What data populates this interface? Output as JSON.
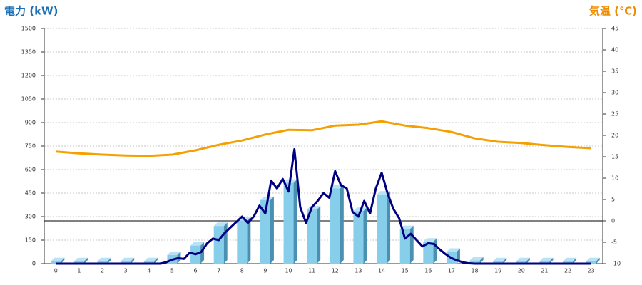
{
  "chart_data": {
    "type": "combo",
    "title": "電力 (kW)",
    "y2_title": "気温 (℃)",
    "categories": [
      "0",
      "1",
      "2",
      "3",
      "4",
      "5",
      "6",
      "7",
      "8",
      "9",
      "10",
      "11",
      "12",
      "13",
      "14",
      "15",
      "16",
      "17",
      "18",
      "19",
      "20",
      "21",
      "22",
      "23"
    ],
    "series": [
      {
        "type": "bar",
        "color": "#87ceeb",
        "values": [
          15,
          15,
          15,
          15,
          15,
          55,
          115,
          240,
          275,
          405,
          515,
          345,
          480,
          335,
          440,
          220,
          140,
          75,
          20,
          15,
          15,
          15,
          15,
          15
        ]
      },
      {
        "type": "line",
        "color": "#f5a000",
        "axis": "y2",
        "values": [
          16.2,
          15.8,
          15.5,
          15.3,
          15.2,
          15.5,
          16.5,
          17.8,
          18.8,
          20.2,
          21.3,
          21.2,
          22.3,
          22.5,
          23.3,
          22.3,
          21.7,
          20.8,
          19.3,
          18.5,
          18.2,
          17.7,
          17.3,
          17.0
        ]
      },
      {
        "type": "line",
        "color": "#000080",
        "x": [
          0,
          1,
          2,
          3,
          4,
          4.5,
          4.75,
          5,
          5.25,
          5.5,
          5.75,
          6,
          6.25,
          6.5,
          6.75,
          7,
          7.25,
          7.5,
          7.75,
          8,
          8.25,
          8.5,
          8.75,
          9,
          9.25,
          9.5,
          9.75,
          10,
          10.25,
          10.5,
          10.75,
          11,
          11.25,
          11.5,
          11.75,
          12,
          12.25,
          12.5,
          12.75,
          13,
          13.25,
          13.5,
          13.75,
          14,
          14.25,
          14.5,
          14.75,
          15,
          15.25,
          15.5,
          15.75,
          16,
          16.25,
          16.5,
          16.75,
          17,
          17.25,
          17.5,
          17.75,
          18,
          19,
          20,
          21,
          22,
          23
        ],
        "values": [
          0,
          0,
          0,
          0,
          0,
          0,
          10,
          25,
          35,
          30,
          70,
          60,
          75,
          130,
          160,
          150,
          195,
          230,
          265,
          300,
          260,
          300,
          370,
          320,
          530,
          480,
          540,
          460,
          730,
          360,
          260,
          360,
          400,
          450,
          420,
          590,
          500,
          480,
          330,
          300,
          400,
          320,
          480,
          580,
          450,
          350,
          290,
          160,
          190,
          150,
          110,
          130,
          125,
          90,
          60,
          35,
          20,
          8,
          2,
          0,
          0,
          0,
          0,
          0,
          0
        ]
      }
    ],
    "ylim": [
      0,
      1500
    ],
    "yticks": [
      0,
      150,
      300,
      450,
      600,
      750,
      900,
      1050,
      1200,
      1350,
      1500
    ],
    "y2lim": [
      -10,
      45
    ],
    "y2ticks": [
      -10,
      -5,
      0,
      5,
      10,
      15,
      20,
      25,
      30,
      35,
      40,
      45
    ],
    "grid": true
  }
}
